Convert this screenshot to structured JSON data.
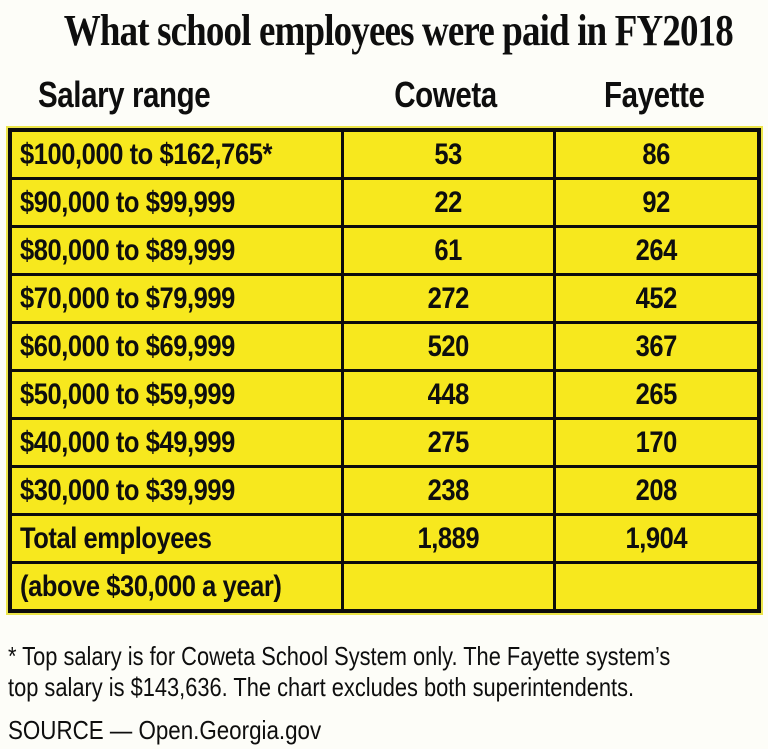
{
  "title": "What school employees were paid in FY2018",
  "table": {
    "columns": [
      "Salary range",
      "Coweta",
      "Fayette"
    ],
    "rows": [
      {
        "range": "$100,000 to $162,765*",
        "coweta": "53",
        "fayette": "86"
      },
      {
        "range": "$90,000 to $99,999",
        "coweta": "22",
        "fayette": "92"
      },
      {
        "range": "$80,000 to $89,999",
        "coweta": "61",
        "fayette": "264"
      },
      {
        "range": "$70,000 to $79,999",
        "coweta": "272",
        "fayette": "452"
      },
      {
        "range": "$60,000 to $69,999",
        "coweta": "520",
        "fayette": "367"
      },
      {
        "range": "$50,000 to $59,999",
        "coweta": "448",
        "fayette": "265"
      },
      {
        "range": "$40,000 to $49,999",
        "coweta": "275",
        "fayette": "170"
      },
      {
        "range": "$30,000 to $39,999",
        "coweta": "238",
        "fayette": "208"
      },
      {
        "range": "Total employees",
        "coweta": "1,889",
        "fayette": "1,904"
      },
      {
        "range": "(above $30,000 a year)",
        "coweta": "",
        "fayette": ""
      }
    ]
  },
  "footnote": {
    "line1": "* Top salary is for Coweta School System only. The Fayette system’s",
    "line2": "top salary is $143,636. The chart excludes both superintendents."
  },
  "source": "SOURCE — Open.Georgia.gov",
  "colors": {
    "cell_yellow": "#f7e81e",
    "border_black": "#0c0c0c",
    "text_black": "#0e0e0e",
    "background": "#fdfdf8"
  },
  "chart_data": {
    "type": "table",
    "title": "What school employees were paid in FY2018",
    "categories": [
      "$100,000 to $162,765*",
      "$90,000 to $99,999",
      "$80,000 to $89,999",
      "$70,000 to $79,999",
      "$60,000 to $69,999",
      "$50,000 to $59,999",
      "$40,000 to $49,999",
      "$30,000 to $39,999"
    ],
    "series": [
      {
        "name": "Coweta",
        "values": [
          53,
          22,
          61,
          272,
          520,
          448,
          275,
          238
        ],
        "total": 1889
      },
      {
        "name": "Fayette",
        "values": [
          86,
          92,
          264,
          452,
          367,
          265,
          170,
          208
        ],
        "total": 1904
      }
    ],
    "totals_row_label": "Total employees (above $30,000 a year)",
    "footnote": "* Top salary is for Coweta School System only. The Fayette system’s top salary is $143,636. The chart excludes both superintendents.",
    "source": "SOURCE — Open.Georgia.gov"
  }
}
